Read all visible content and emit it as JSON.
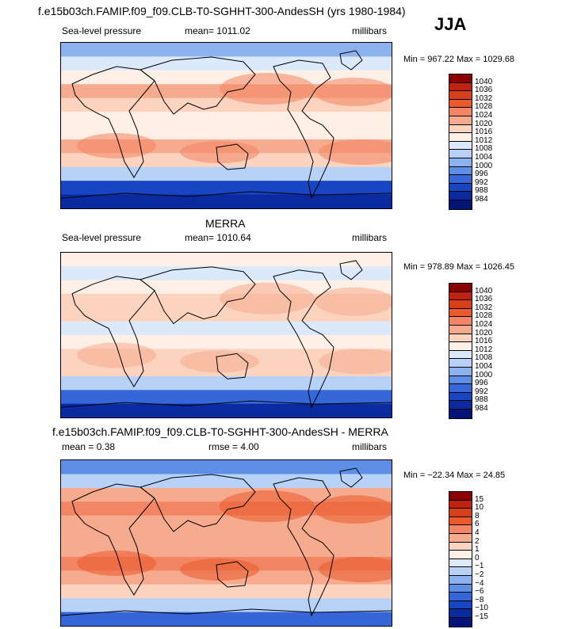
{
  "season": "JJA",
  "chart_data": [
    {
      "type": "heatmap",
      "title": "f.e15b03ch.FAMIP.f09_f09.CLB-T0-SGHHT-300-AndesSH (yrs 1980-1984)",
      "variable": "Sea-level pressure",
      "mean_text": "mean=  1011.02",
      "units": "millibars",
      "min_max": "Min = 967.22  Max = 1029.68",
      "min": 967.22,
      "max": 1029.68,
      "mean": 1011.02,
      "levels": [
        "1040",
        "1036",
        "1032",
        "1028",
        "1024",
        "1020",
        "1016",
        "1012",
        "1008",
        "1004",
        "1000",
        "996",
        "992",
        "988",
        "984"
      ],
      "colors": [
        "#8b0000",
        "#c0230f",
        "#d8401a",
        "#ea5a2b",
        "#f28563",
        "#f6ab8f",
        "#fbd3bf",
        "#fef0e6",
        "#dce9fb",
        "#b7d1f7",
        "#8cb3f0",
        "#5e8fe6",
        "#3567d8",
        "#1845c2",
        "#0a2aa0",
        "#001577"
      ],
      "band_means": [
        1003,
        1010,
        1014,
        1020,
        1017,
        1012,
        1014,
        1022,
        1018,
        1005,
        990,
        984
      ]
    },
    {
      "type": "heatmap",
      "title": "MERRA",
      "variable": "Sea-level pressure",
      "mean_text": "mean=  1010.64",
      "units": "millibars",
      "min_max": "Min = 978.89  Max = 1026.45",
      "min": 978.89,
      "max": 1026.45,
      "mean": 1010.64,
      "levels": [
        "1040",
        "1036",
        "1032",
        "1028",
        "1024",
        "1020",
        "1016",
        "1012",
        "1008",
        "1004",
        "1000",
        "996",
        "992",
        "988",
        "984"
      ],
      "colors": [
        "#8b0000",
        "#c0230f",
        "#d8401a",
        "#ea5a2b",
        "#f28563",
        "#f6ab8f",
        "#fbd3bf",
        "#fef0e6",
        "#dce9fb",
        "#b7d1f7",
        "#8cb3f0",
        "#5e8fe6",
        "#3567d8",
        "#1845c2",
        "#0a2aa0",
        "#001577"
      ],
      "band_means": [
        1012,
        1011,
        1013,
        1017,
        1016,
        1011,
        1013,
        1018,
        1016,
        1004,
        992,
        986
      ]
    },
    {
      "type": "heatmap",
      "title": "f.e15b03ch.FAMIP.f09_f09.CLB-T0-SGHHT-300-AndesSH - MERRA",
      "mean_text": "mean =    0.38",
      "rmse_text": "rmse =    4.00",
      "units": "millibars",
      "min_max": "Min = −22.34  Max =  24.85",
      "min": -22.34,
      "max": 24.85,
      "mean": 0.38,
      "rmse": 4.0,
      "levels": [
        "15",
        "10",
        "8",
        "6",
        "4",
        "2",
        "1",
        "0",
        "−1",
        "−2",
        "−4",
        "−6",
        "−8",
        "−10",
        "−15"
      ],
      "colors": [
        "#8b0000",
        "#c0230f",
        "#d8401a",
        "#ea5a2b",
        "#f28563",
        "#f6ab8f",
        "#fbd3bf",
        "#fef0e6",
        "#dce9fb",
        "#b7d1f7",
        "#8cb3f0",
        "#5e8fe6",
        "#3567d8",
        "#1845c2",
        "#0a2aa0",
        "#001577"
      ],
      "band_means": [
        -6,
        -2,
        3,
        4,
        3,
        2,
        2,
        4,
        2,
        1,
        -2,
        -7
      ]
    }
  ]
}
